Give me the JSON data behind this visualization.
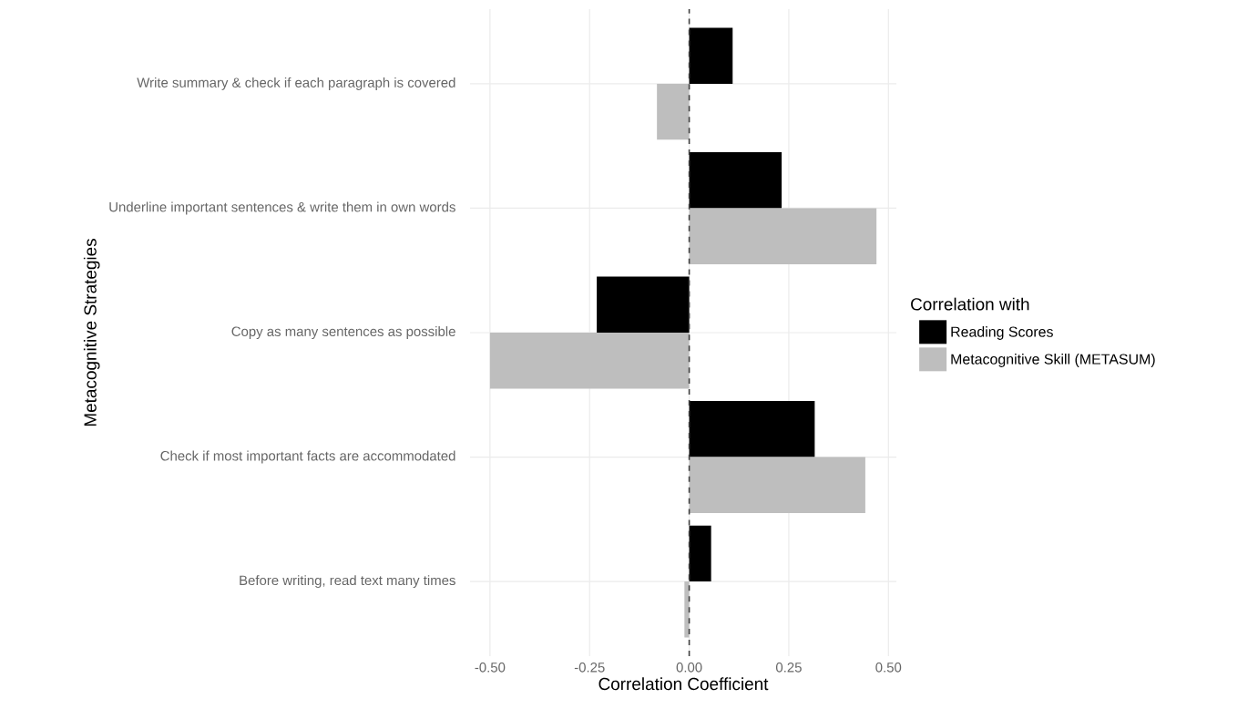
{
  "chart_data": {
    "type": "bar",
    "orientation": "horizontal",
    "xlabel": "Correlation Coefficient",
    "ylabel": "Metacognitive Strategies",
    "legend_title": "Correlation with",
    "categories": [
      "Write summary & check if each paragraph is covered",
      "Underline important sentences & write them in own words",
      "Copy as many sentences as possible",
      "Check if most important facts are accommodated",
      "Before writing, read text many times"
    ],
    "series": [
      {
        "name": "Reading Scores",
        "color": "#000000",
        "values": [
          0.109,
          0.232,
          -0.232,
          0.315,
          0.055
        ]
      },
      {
        "name": "Metacognitive Skill (METASUM)",
        "color": "#bebebe",
        "values": [
          -0.081,
          0.47,
          -0.5,
          0.442,
          -0.012
        ]
      }
    ],
    "xlim": [
      -0.55,
      0.52
    ],
    "xticks": [
      {
        "value": -0.5,
        "label": "-0.50"
      },
      {
        "value": -0.25,
        "label": "-0.25"
      },
      {
        "value": 0,
        "label": "0.00"
      },
      {
        "value": 0.25,
        "label": "0.25"
      },
      {
        "value": 0.5,
        "label": "0.50"
      }
    ],
    "ref_lines": [
      {
        "axis": "x",
        "value": 0,
        "line_style": "dashed"
      }
    ],
    "grid": true,
    "legend": "right"
  }
}
